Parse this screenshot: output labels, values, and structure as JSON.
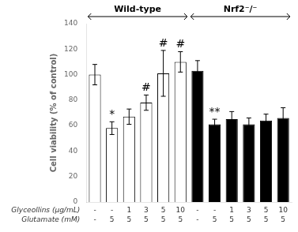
{
  "chart_data": {
    "type": "bar",
    "categories": [
      null,
      null,
      null,
      null,
      null,
      null,
      null,
      null,
      null,
      null,
      null,
      null
    ],
    "values": [
      100,
      58,
      67,
      78,
      101,
      110,
      103,
      61,
      65,
      61,
      64,
      66
    ],
    "errors": [
      8,
      5,
      6,
      6,
      18,
      8,
      8,
      4,
      6,
      5,
      5,
      8
    ],
    "colors": [
      "white",
      "white",
      "white",
      "white",
      "white",
      "white",
      "black",
      "black",
      "black",
      "black",
      "black",
      "black"
    ],
    "edge_color": "black",
    "annotations": [
      {
        "index": 1,
        "text": "*"
      },
      {
        "index": 3,
        "text": "#"
      },
      {
        "index": 4,
        "text": "#"
      },
      {
        "index": 5,
        "text": "#"
      },
      {
        "index": 7,
        "text": "**"
      }
    ],
    "x_label_rows": [
      {
        "name": "Glyceollins (μg/mL)",
        "labels": [
          "-",
          "-",
          "1",
          "3",
          "5",
          "10",
          "-",
          "-",
          "1",
          "3",
          "5",
          "10"
        ]
      },
      {
        "name": "Glutamate (mM)",
        "labels": [
          "-",
          "5",
          "5",
          "5",
          "5",
          "5",
          "-",
          "5",
          "5",
          "5",
          "5",
          "5"
        ]
      }
    ],
    "groups": [
      {
        "name": "Wild-type",
        "size": 6
      },
      {
        "name": "Nrf2⁻/⁻",
        "size": 6
      }
    ],
    "ylabel": "Cell viability (% of control)",
    "ylim": [
      0,
      140
    ],
    "yticks": [
      0,
      20,
      40,
      60,
      80,
      100,
      120,
      140
    ],
    "grid": false
  }
}
